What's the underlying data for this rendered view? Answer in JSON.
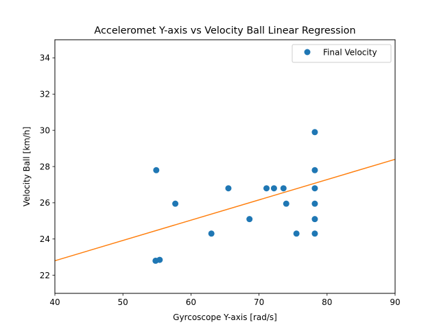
{
  "chart_data": {
    "type": "scatter",
    "title": "Acceleromet Y-axis vs Velocity Ball Linear Regression",
    "xlabel": "Gyrcoscope Y-axis [rad/s]",
    "ylabel": "Velocity Ball [km/h]",
    "xlim": [
      40,
      90
    ],
    "ylim": [
      21,
      35
    ],
    "xticks": [
      40,
      50,
      60,
      70,
      80,
      90
    ],
    "yticks": [
      22,
      24,
      26,
      28,
      30,
      32,
      34
    ],
    "grid": false,
    "legend_position": "top-right",
    "series": [
      {
        "name": "Final Velocity",
        "marker": "circle",
        "color": "#1f77b4",
        "points": [
          [
            54.8,
            22.8
          ],
          [
            55.4,
            22.85
          ],
          [
            54.9,
            27.8
          ],
          [
            57.7,
            25.95
          ],
          [
            63.0,
            24.3
          ],
          [
            65.5,
            26.8
          ],
          [
            68.6,
            25.1
          ],
          [
            71.1,
            26.8
          ],
          [
            72.2,
            26.8
          ],
          [
            73.6,
            26.8
          ],
          [
            74.0,
            25.95
          ],
          [
            75.5,
            24.3
          ],
          [
            78.2,
            29.9
          ],
          [
            78.2,
            27.8
          ],
          [
            78.2,
            26.8
          ],
          [
            78.2,
            25.95
          ],
          [
            78.2,
            25.1
          ],
          [
            78.2,
            24.3
          ]
        ]
      }
    ],
    "regression_line": {
      "color": "#ff7f0e",
      "points": [
        [
          40,
          22.8
        ],
        [
          90,
          28.4
        ]
      ]
    }
  }
}
